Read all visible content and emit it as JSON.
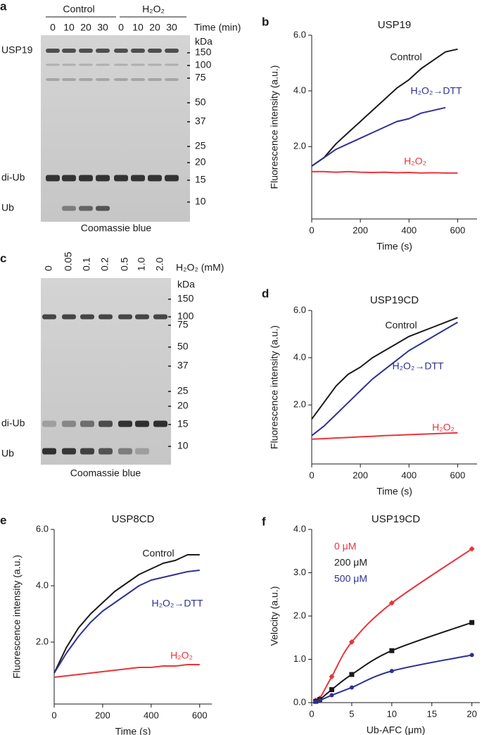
{
  "gels": [
    {
      "panel": "a",
      "groups": [
        "Control",
        "H₂O₂"
      ],
      "lanes": [
        "0",
        "10",
        "20",
        "30",
        "0",
        "10",
        "20",
        "30"
      ],
      "lane_title": "Time (min)",
      "marker_title": "kDa",
      "markers": [
        150,
        100,
        75,
        50,
        37,
        25,
        20,
        15,
        10
      ],
      "band_labels": [
        "USP19",
        "di-Ub",
        "Ub"
      ],
      "caption": "Coomassie blue"
    },
    {
      "panel": "c",
      "lanes": [
        "0",
        "0.05",
        "0.1",
        "0.2",
        "0.5",
        "1.0",
        "2.0"
      ],
      "lane_title": "H₂O₂ (mM)",
      "marker_title": "kDa",
      "markers": [
        150,
        100,
        75,
        50,
        37,
        25,
        20,
        15,
        10
      ],
      "band_labels": [
        "di-Ub",
        "Ub"
      ],
      "caption": "Coomassie blue"
    }
  ],
  "chart_data": [
    {
      "panel": "b",
      "type": "line",
      "title": "USP19",
      "xlabel": "Time (s)",
      "ylabel": "Fluorescence intensity (a.u.)",
      "x": [
        0,
        50,
        100,
        150,
        200,
        250,
        300,
        350,
        400,
        450,
        500,
        550,
        600
      ],
      "xlim": [
        0,
        680
      ],
      "xticks": [
        0,
        200,
        400,
        600
      ],
      "ylim": [
        -0.6,
        6.0
      ],
      "yticks": [
        {
          "value": 2,
          "label": "2.0"
        },
        {
          "value": 4,
          "label": "4.0"
        },
        {
          "value": 6,
          "label": "6.0"
        }
      ],
      "series": [
        {
          "name": "Control",
          "color": "#1a1a1a",
          "values": [
            1.3,
            1.6,
            2.1,
            2.5,
            2.9,
            3.3,
            3.7,
            4.1,
            4.4,
            4.8,
            5.1,
            5.4,
            5.5
          ]
        },
        {
          "name": "H₂O₂→DTT",
          "color": "#2e3192",
          "values": [
            1.3,
            1.6,
            1.9,
            2.1,
            2.3,
            2.5,
            2.7,
            2.9,
            3.0,
            3.2,
            3.3,
            3.4,
            null
          ]
        },
        {
          "name": "H₂O₂",
          "color": "#e8343a",
          "values": [
            1.1,
            1.1,
            1.08,
            1.1,
            1.08,
            1.07,
            1.08,
            1.06,
            1.07,
            1.05,
            1.06,
            1.05,
            1.05
          ]
        }
      ]
    },
    {
      "panel": "d",
      "type": "line",
      "title": "USP19CD",
      "xlabel": "Time (s)",
      "ylabel": "Fluorescence intensity (a.u.)",
      "x": [
        0,
        50,
        100,
        150,
        200,
        250,
        300,
        350,
        400,
        450,
        500,
        550,
        600
      ],
      "xlim": [
        0,
        680
      ],
      "xticks": [
        0,
        200,
        400,
        600
      ],
      "ylim": [
        -0.5,
        6.0
      ],
      "yticks": [
        {
          "value": 2,
          "label": "2.0"
        },
        {
          "value": 4,
          "label": "4.0"
        },
        {
          "value": 6,
          "label": "6.0"
        }
      ],
      "series": [
        {
          "name": "Control",
          "color": "#1a1a1a",
          "values": [
            1.4,
            2.1,
            2.8,
            3.3,
            3.6,
            4.0,
            4.3,
            4.6,
            4.9,
            5.1,
            5.3,
            5.5,
            5.7
          ]
        },
        {
          "name": "H₂O₂→DTT",
          "color": "#2e3192",
          "values": [
            0.7,
            1.1,
            1.6,
            2.1,
            2.6,
            3.1,
            3.5,
            3.9,
            4.3,
            4.6,
            4.9,
            5.2,
            5.5
          ]
        },
        {
          "name": "H₂O₂",
          "color": "#e8343a",
          "values": [
            0.55,
            0.57,
            0.6,
            0.62,
            0.65,
            0.67,
            0.7,
            0.72,
            0.74,
            0.76,
            0.78,
            0.8,
            0.82
          ]
        }
      ]
    },
    {
      "panel": "e",
      "type": "line",
      "title": "USP8CD",
      "xlabel": "Time (s)",
      "ylabel": "Fluorescence intensity (a.u.)",
      "x": [
        0,
        50,
        100,
        150,
        200,
        250,
        300,
        350,
        400,
        450,
        500,
        550,
        600
      ],
      "xlim": [
        0,
        650
      ],
      "xticks": [
        0,
        200,
        400,
        600
      ],
      "ylim": [
        -0.2,
        6.0
      ],
      "yticks": [
        {
          "value": 2,
          "label": "2.0"
        },
        {
          "value": 4,
          "label": "4.0"
        },
        {
          "value": 6,
          "label": "6.0"
        }
      ],
      "series": [
        {
          "name": "Control",
          "color": "#1a1a1a",
          "values": [
            0.9,
            1.8,
            2.5,
            3.0,
            3.4,
            3.8,
            4.1,
            4.4,
            4.6,
            4.8,
            4.9,
            5.1,
            5.1
          ]
        },
        {
          "name": "H₂O₂→DTT",
          "color": "#2e3192",
          "values": [
            0.9,
            1.6,
            2.2,
            2.7,
            3.1,
            3.4,
            3.7,
            4.0,
            4.2,
            4.3,
            4.4,
            4.5,
            4.55
          ]
        },
        {
          "name": "H₂O₂",
          "color": "#e8343a",
          "values": [
            0.75,
            0.8,
            0.85,
            0.9,
            0.95,
            1.0,
            1.05,
            1.1,
            1.1,
            1.15,
            1.15,
            1.2,
            1.2
          ]
        }
      ]
    },
    {
      "panel": "f",
      "type": "scatter",
      "title": "USP19CD",
      "xlabel": "Ub-AFC (μm)",
      "ylabel": "Velocity (a.u.)",
      "x": [
        0.5,
        1,
        2.5,
        5,
        10,
        20
      ],
      "xlim": [
        0,
        21
      ],
      "xticks": [
        0,
        5,
        10,
        15,
        20
      ],
      "ylim": [
        0,
        4.0
      ],
      "yticks": [
        {
          "value": 0,
          "label": "0.0"
        },
        {
          "value": 1,
          "label": "1.0"
        },
        {
          "value": 2,
          "label": "2.0"
        },
        {
          "value": 3,
          "label": "3.0"
        },
        {
          "value": 4,
          "label": "4.0"
        }
      ],
      "series": [
        {
          "name": "0 μM",
          "color": "#e8343a",
          "marker": "diamond",
          "values": [
            0.05,
            0.1,
            0.6,
            1.4,
            2.3,
            3.55
          ]
        },
        {
          "name": "200 μM",
          "color": "#1a1a1a",
          "marker": "square",
          "values": [
            0.03,
            0.07,
            0.3,
            0.65,
            1.2,
            1.85
          ]
        },
        {
          "name": "500 μM",
          "color": "#2e3192",
          "marker": "circle",
          "values": [
            0.02,
            0.05,
            0.17,
            0.35,
            0.73,
            1.1
          ]
        }
      ]
    }
  ]
}
